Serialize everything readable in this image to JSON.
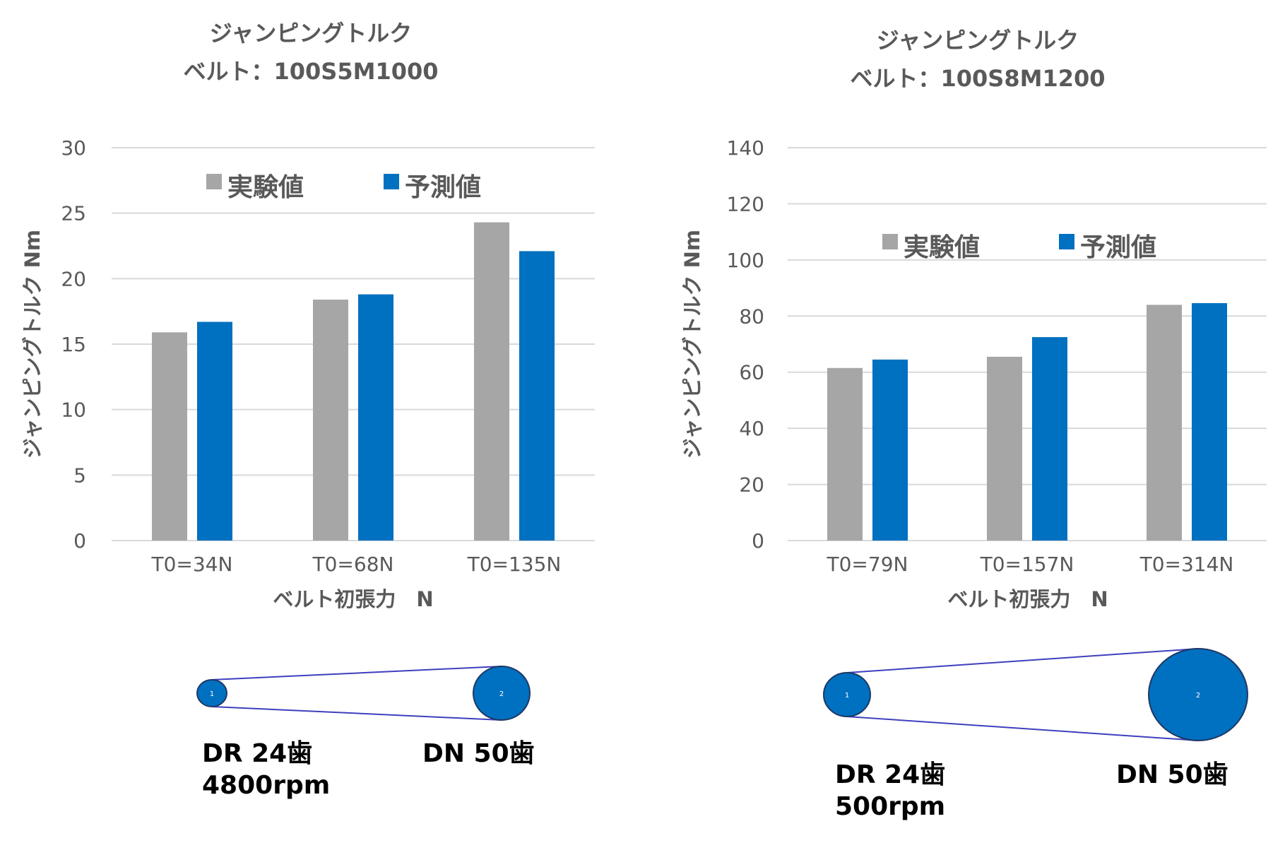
{
  "colors": {
    "experiment": "#a6a6a6",
    "prediction": "#0070c0",
    "grid": "#d9d9d9",
    "text": "#595959",
    "pulley": "#0070c0",
    "belt": "#3f3fbf"
  },
  "chart_data": [
    {
      "type": "bar",
      "title": [
        "ジャンピングトルク",
        "ベルト：100S5M1000"
      ],
      "xlabel": "ベルト初張力　N",
      "ylabel": "ジャンピングトルク Nm",
      "ylim": [
        0,
        30
      ],
      "yticks": [
        0,
        5,
        10,
        15,
        20,
        25,
        30
      ],
      "grid": true,
      "legend_position": "top",
      "categories": [
        "T0=34N",
        "T0=68N",
        "T0=135N"
      ],
      "series": [
        {
          "name": "実験値",
          "color": "#a6a6a6",
          "values": [
            15.9,
            18.4,
            24.3
          ]
        },
        {
          "name": "予測値",
          "color": "#0070c0",
          "values": [
            16.7,
            18.8,
            22.1
          ]
        }
      ]
    },
    {
      "type": "bar",
      "title": [
        "ジャンピングトルク",
        "ベルト：100S8M1200"
      ],
      "xlabel": "ベルト初張力　N",
      "ylabel": "ジャンピングトルク Nm",
      "ylim": [
        0,
        140
      ],
      "yticks": [
        0,
        20,
        40,
        60,
        80,
        100,
        120,
        140
      ],
      "grid": true,
      "legend_position": "top",
      "categories": [
        "T0=79N",
        "T0=157N",
        "T0=314N"
      ],
      "series": [
        {
          "name": "実験値",
          "color": "#a6a6a6",
          "values": [
            61.5,
            65.5,
            84
          ]
        },
        {
          "name": "予測値",
          "color": "#0070c0",
          "values": [
            64.5,
            72.5,
            84.6
          ]
        }
      ]
    }
  ],
  "diagrams": [
    {
      "small_pulley_label": "1",
      "large_pulley_label": "2",
      "driver_lines": [
        "DR  24歯",
        "4800rpm"
      ],
      "driven_lines": [
        "DN  50歯"
      ]
    },
    {
      "small_pulley_label": "1",
      "large_pulley_label": "2",
      "driver_lines": [
        "DR  24歯",
        "500rpm"
      ],
      "driven_lines": [
        "DN  50歯"
      ]
    }
  ]
}
